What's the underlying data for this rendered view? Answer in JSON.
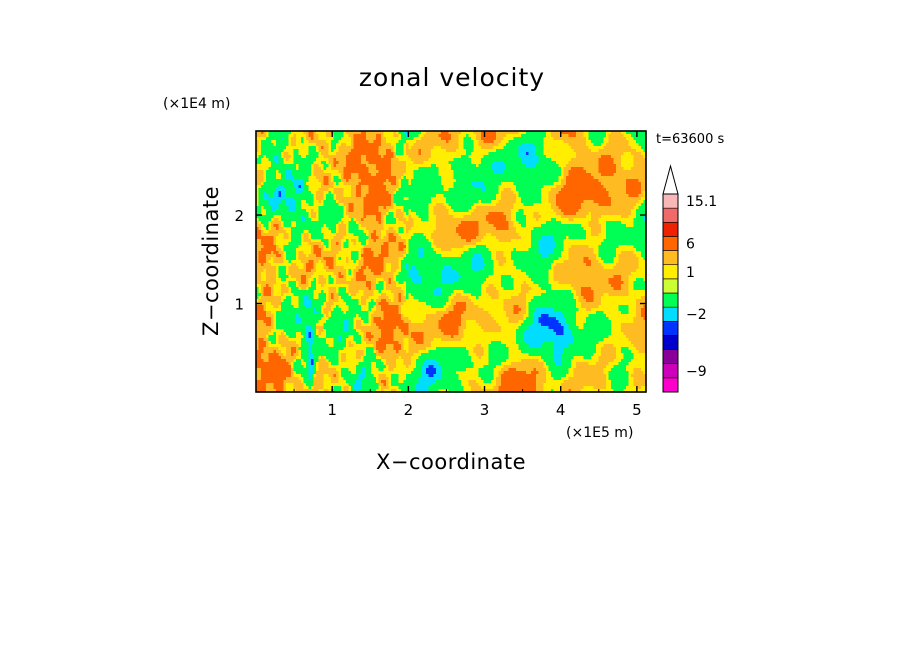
{
  "chart_data": {
    "type": "heatmap",
    "title": "zonal velocity",
    "xlabel": "X−coordinate",
    "ylabel": "Z−coordinate",
    "x_unit": "(×1E5 m)",
    "y_unit": "(×1E4 m)",
    "time_label": "t=63600 s",
    "xlim": [
      0,
      5.12
    ],
    "ylim": [
      0,
      2.95
    ],
    "x_ticks": [
      {
        "value": 1,
        "label": "1"
      },
      {
        "value": 2,
        "label": "2"
      },
      {
        "value": 3,
        "label": "3"
      },
      {
        "value": 4,
        "label": "4"
      },
      {
        "value": 5,
        "label": "5"
      }
    ],
    "y_ticks": [
      {
        "value": 1,
        "label": "1"
      },
      {
        "value": 2,
        "label": "2"
      }
    ],
    "colorbar": {
      "bins": [
        {
          "color": "#ff00cc"
        },
        {
          "color": "#cc00bb"
        },
        {
          "color": "#880099"
        },
        {
          "color": "#0000cc"
        },
        {
          "color": "#0033ff"
        },
        {
          "color": "#00ddff"
        },
        {
          "color": "#00ff55"
        },
        {
          "color": "#ccff33"
        },
        {
          "color": "#ffee00"
        },
        {
          "color": "#ffbb22"
        },
        {
          "color": "#ff6600"
        },
        {
          "color": "#ee2200"
        },
        {
          "color": "#f06a6a"
        },
        {
          "color": "#f8b8b8"
        }
      ],
      "extend_top": true,
      "labels": [
        {
          "bin": 13,
          "text": "15.1"
        },
        {
          "bin": 10,
          "text": "6"
        },
        {
          "bin": 8,
          "text": "1"
        },
        {
          "bin": 5,
          "text": "−2"
        },
        {
          "bin": 1,
          "text": "−9"
        }
      ]
    },
    "field_levels": [
      {
        "min": -99,
        "max": -7,
        "color": "#0000cc"
      },
      {
        "min": -7,
        "max": -5.5,
        "color": "#0033ff"
      },
      {
        "min": -5.5,
        "max": -3.5,
        "color": "#00ddff"
      },
      {
        "min": -3.5,
        "max": -0.3,
        "color": "#00ff55"
      },
      {
        "min": -0.3,
        "max": 1.2,
        "color": "#ffee00"
      },
      {
        "min": 1.2,
        "max": 3.2,
        "color": "#ffbb22"
      },
      {
        "min": 3.2,
        "max": 99,
        "color": "#ff6600"
      }
    ]
  }
}
